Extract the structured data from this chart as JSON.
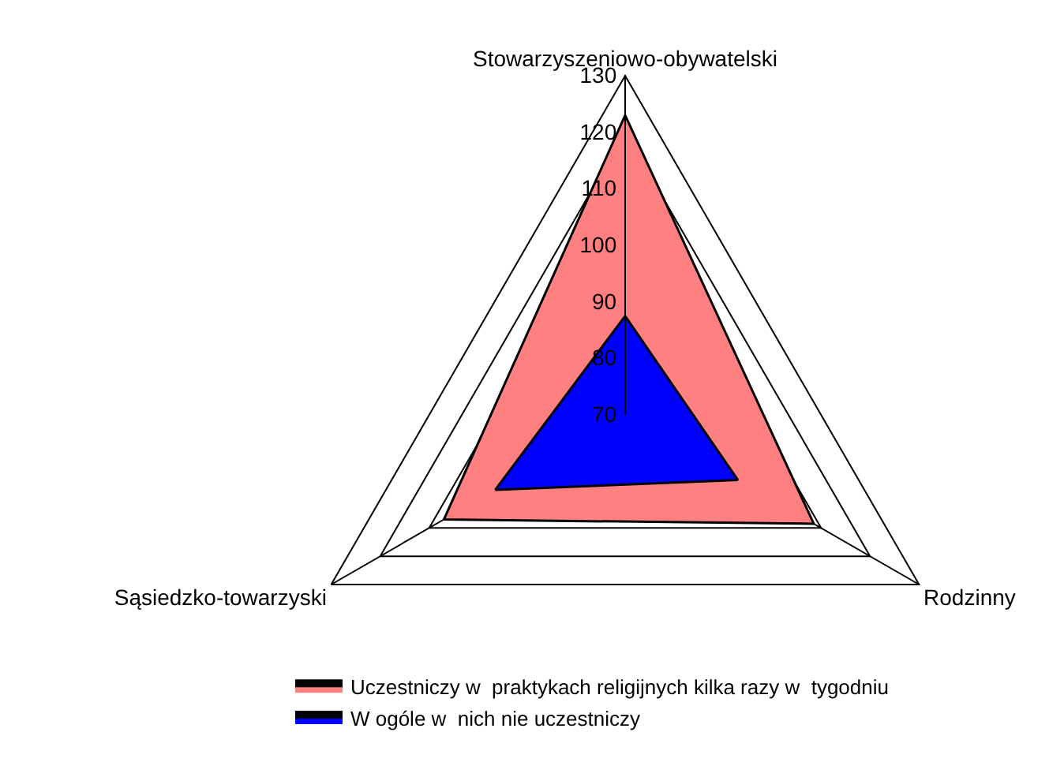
{
  "chart_data": {
    "type": "radar",
    "categories": [
      "Stowarzyszeniowo-obywatelski",
      "Rodzinny",
      "Sąsiedzko-towarzyski"
    ],
    "series": [
      {
        "name": "Uczestniczy w  praktykach religijnych kilka razy w  tygodniu",
        "color": "#ff8080",
        "values": [
          123,
          108.5,
          107
        ]
      },
      {
        "name": "W ogóle w  nich nie uczestniczy",
        "color": "#0000ff",
        "values": [
          87.5,
          93,
          96.5
        ]
      }
    ],
    "ylim": [
      70,
      130
    ],
    "yticks": [
      70,
      80,
      90,
      100,
      110,
      120,
      130
    ],
    "grid": true,
    "legend": "bottom"
  }
}
